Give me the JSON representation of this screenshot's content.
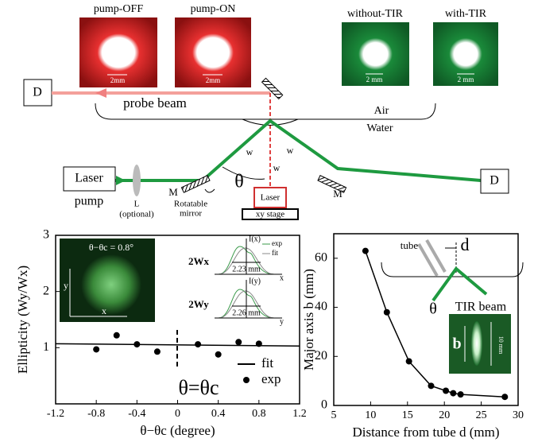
{
  "diagram": {
    "images": [
      {
        "label": "pump-OFF",
        "scale": "2mm"
      },
      {
        "label": "pump-ON",
        "scale": "2mm"
      },
      {
        "label": "without-TIR",
        "scale": "2 mm"
      },
      {
        "label": "with-TIR",
        "scale": "2 mm"
      }
    ],
    "detector_left": "D",
    "detector_right": "D",
    "probe_beam": "probe beam",
    "air": "Air",
    "water": "Water",
    "laser_pump": "Laser",
    "pump": "pump",
    "lens": "L",
    "lens_note": "(optional)",
    "mirror_left": "M",
    "mirror_right": "M",
    "rotatable_mirror": [
      "Rotatable",
      "mirror"
    ],
    "theta": "θ",
    "w_labels": [
      "w",
      "w",
      "w"
    ],
    "laser": "Laser",
    "stage": "xy stage"
  },
  "chart_data": [
    {
      "type": "scatter",
      "xlabel": "θ−θc (degree)",
      "ylabel": "Ellipticity (Wy/Wx)",
      "annotation": "θ=θc",
      "xlim": [
        -1.2,
        1.2
      ],
      "xticks": [
        -1.2,
        -0.8,
        -0.4,
        0,
        0.4,
        0.8,
        1.2
      ],
      "ylim": [
        0,
        3
      ],
      "yticks": [
        1,
        2,
        3
      ],
      "legend": "lower right",
      "series": [
        {
          "name": "fit",
          "style": "line",
          "color": "#000000",
          "x": [
            -1.2,
            1.2
          ],
          "values": [
            1.07,
            1.03
          ]
        },
        {
          "name": "exp",
          "style": "marker",
          "color": "#000000",
          "x": [
            -0.8,
            -0.6,
            -0.4,
            -0.2,
            0.2,
            0.4,
            0.6,
            0.8
          ],
          "values": [
            0.97,
            1.22,
            1.06,
            0.93,
            1.06,
            0.88,
            1.1,
            1.07
          ]
        }
      ],
      "insets": {
        "image_label": "θ−θc = 0.8°",
        "image_axes": [
          "y",
          "x"
        ],
        "profiles": [
          {
            "label": "2Wx",
            "width": "2.23 mm",
            "axis_label": "I(x)",
            "variable": "x",
            "legend": [
              "exp",
              "fit"
            ]
          },
          {
            "label": "2Wy",
            "width": "2.26 mm",
            "axis_label": "I(y)",
            "variable": "y"
          }
        ]
      }
    },
    {
      "type": "line",
      "xlabel": "Distance from tube d (mm)",
      "ylabel": "Major axis b (mm)",
      "xlim": [
        5,
        30
      ],
      "xticks": [
        5,
        10,
        15,
        20,
        25,
        30
      ],
      "ylim": [
        0,
        70
      ],
      "yticks": [
        0,
        20,
        40,
        60
      ],
      "series": [
        {
          "style": "line-marker",
          "color": "#000000",
          "x": [
            9.3,
            12.2,
            15.2,
            18.2,
            20.2,
            21.2,
            22.2,
            28.2
          ],
          "values": [
            63,
            38,
            18,
            8,
            6,
            5,
            4.5,
            3.5
          ]
        }
      ],
      "insets": {
        "tube": "tube",
        "distance": "d",
        "theta": "θ",
        "beam": "TIR beam",
        "major_axis": "b",
        "scale": "10 mm"
      }
    }
  ]
}
